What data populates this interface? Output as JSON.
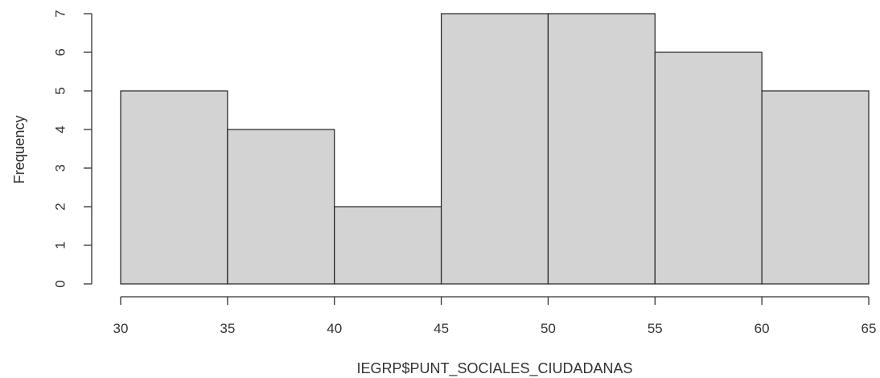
{
  "chart_data": {
    "type": "bar",
    "title": "",
    "xlabel": "IEGRP$PUNT_SOCIALES_CIUDADANAS",
    "ylabel": "Frequency",
    "bins": [
      {
        "start": 30,
        "end": 35,
        "count": 5
      },
      {
        "start": 35,
        "end": 40,
        "count": 4
      },
      {
        "start": 40,
        "end": 45,
        "count": 2
      },
      {
        "start": 45,
        "end": 50,
        "count": 7
      },
      {
        "start": 50,
        "end": 55,
        "count": 7
      },
      {
        "start": 55,
        "end": 60,
        "count": 6
      },
      {
        "start": 60,
        "end": 65,
        "count": 5
      }
    ],
    "xticks": [
      "30",
      "35",
      "40",
      "45",
      "50",
      "55",
      "60",
      "65"
    ],
    "yticks": [
      "0",
      "1",
      "2",
      "3",
      "4",
      "5",
      "6",
      "7"
    ],
    "xlim": [
      30,
      65
    ],
    "ylim": [
      0,
      7
    ],
    "grid": false,
    "bar_fill": "#d3d3d3",
    "bar_stroke": "#222222"
  }
}
